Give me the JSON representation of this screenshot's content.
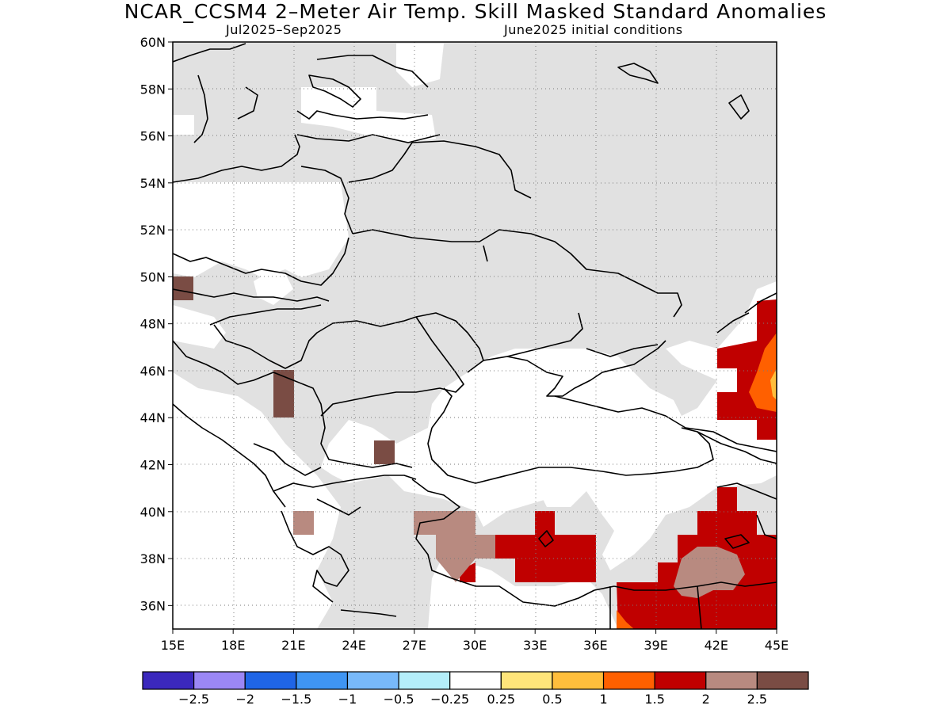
{
  "title": "NCAR_CCSM4 2–Meter Air Temp. Skill Masked Standard Anomalies",
  "subtitle_left": "Jul2025–Sep2025",
  "subtitle_right": "June2025 initial conditions",
  "map": {
    "lon_range": [
      15,
      45
    ],
    "lat_range": [
      35,
      60
    ],
    "lat_ticks": [
      "60N",
      "58N",
      "56N",
      "54N",
      "52N",
      "50N",
      "48N",
      "46N",
      "44N",
      "42N",
      "40N",
      "38N",
      "36N"
    ],
    "lon_ticks": [
      "15E",
      "18E",
      "21E",
      "24E",
      "27E",
      "30E",
      "33E",
      "36E",
      "39E",
      "42E",
      "45E"
    ],
    "gridlines": true,
    "colors": {
      "masked": "#e1e1e1",
      "c_1_5_2": "#c00000",
      "c_1_1_5": "#ff6000",
      "c_0_5_1": "#ffbe3c",
      "c_2_2_5": "#b88a80",
      "c_2_5p": "#7a4c44"
    }
  },
  "legend": {
    "colors": [
      "#3b28bd",
      "#9b87f5",
      "#1f65e6",
      "#3f95f3",
      "#78b9fa",
      "#b4eefa",
      "#ffffff",
      "#ffe57a",
      "#ffbe3c",
      "#ff6000",
      "#c00000",
      "#b88a80",
      "#7a4c44"
    ],
    "labels": [
      "−2.5",
      "−2",
      "−1.5",
      "−1",
      "−0.5",
      "−0.25",
      "0.25",
      "0.5",
      "1",
      "1.5",
      "2",
      "2.5"
    ]
  }
}
